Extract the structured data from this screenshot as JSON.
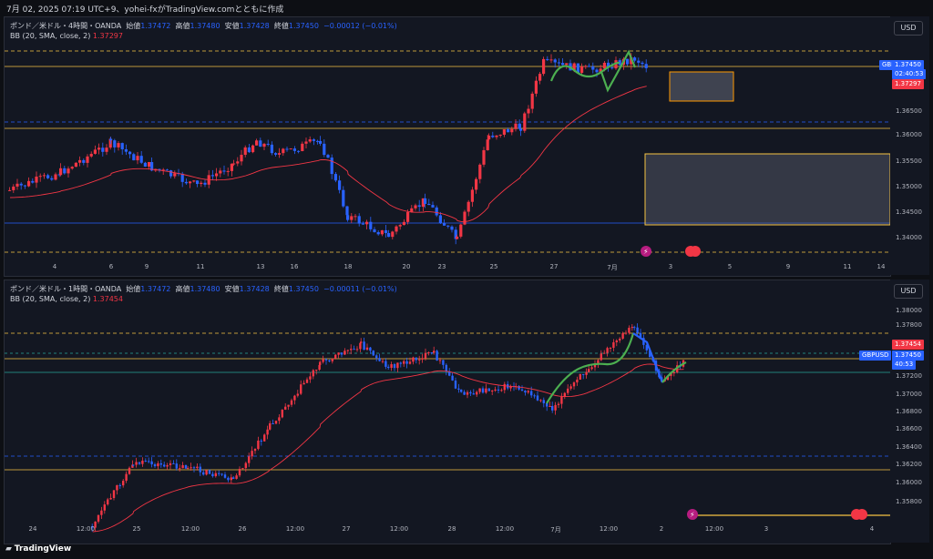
{
  "header": {
    "title": "7月 02, 2025 07:19 UTC+9、yohei-fxがTradingView.comとともに作成"
  },
  "branding": {
    "logo_text": "TradingView",
    "logo_icon": "tradingview-icon"
  },
  "chart1": {
    "legend": {
      "symbol": "ポンド／米ドル・4時間・OANDA",
      "open_l": "始値",
      "open_v": "1.37472",
      "high_l": "高値",
      "high_v": "1.37480",
      "low_l": "安値",
      "low_v": "1.37428",
      "close_l": "終値",
      "close_v": "1.37450",
      "change": "−0.00012 (−0.01%)"
    },
    "bb": {
      "label": "BB (20, SMA, close, 2)",
      "value": "1.37297"
    },
    "currency": "USD",
    "yticks": [
      "1.36500",
      "1.36000",
      "1.35500",
      "1.35000",
      "1.34500",
      "1.34000"
    ],
    "tags": {
      "symbol": "GBPUSD",
      "price": "1.37450",
      "countdown": "02:40:53",
      "bb": "1.37297"
    },
    "xticks": [
      "4",
      "6",
      "9",
      "11",
      "13",
      "16",
      "18",
      "20",
      "23",
      "25",
      "27",
      "7月",
      "3",
      "5",
      "9",
      "11",
      "14"
    ],
    "colors": {
      "up": "#f23645",
      "down": "#2962ff",
      "basis": "#f23645",
      "wave": "#4caf50",
      "zone": "#f6c343"
    }
  },
  "chart2": {
    "legend": {
      "symbol": "ポンド／米ドル・1時間・OANDA",
      "open_l": "始値",
      "open_v": "1.37472",
      "high_l": "高値",
      "high_v": "1.37480",
      "low_l": "安値",
      "low_v": "1.37428",
      "close_l": "終値",
      "close_v": "1.37450",
      "change": "−0.00011 (−0.01%)"
    },
    "bb": {
      "label": "BB (20, SMA, close, 2)",
      "value": "1.37454"
    },
    "currency": "USD",
    "yticks": [
      "1.38000",
      "1.37800",
      "1.37200",
      "1.37000",
      "1.36800",
      "1.36600",
      "1.36400",
      "1.36200",
      "1.36000",
      "1.35800"
    ],
    "tags": {
      "bb": "1.37454",
      "symbol": "GBPUSD",
      "price": "1.37450",
      "countdown": "40:53"
    },
    "xticks": [
      "24",
      "12:00",
      "25",
      "12:00",
      "26",
      "12:00",
      "27",
      "12:00",
      "28",
      "12:00",
      "7月",
      "12:00",
      "2",
      "12:00",
      "3",
      "4"
    ]
  }
}
